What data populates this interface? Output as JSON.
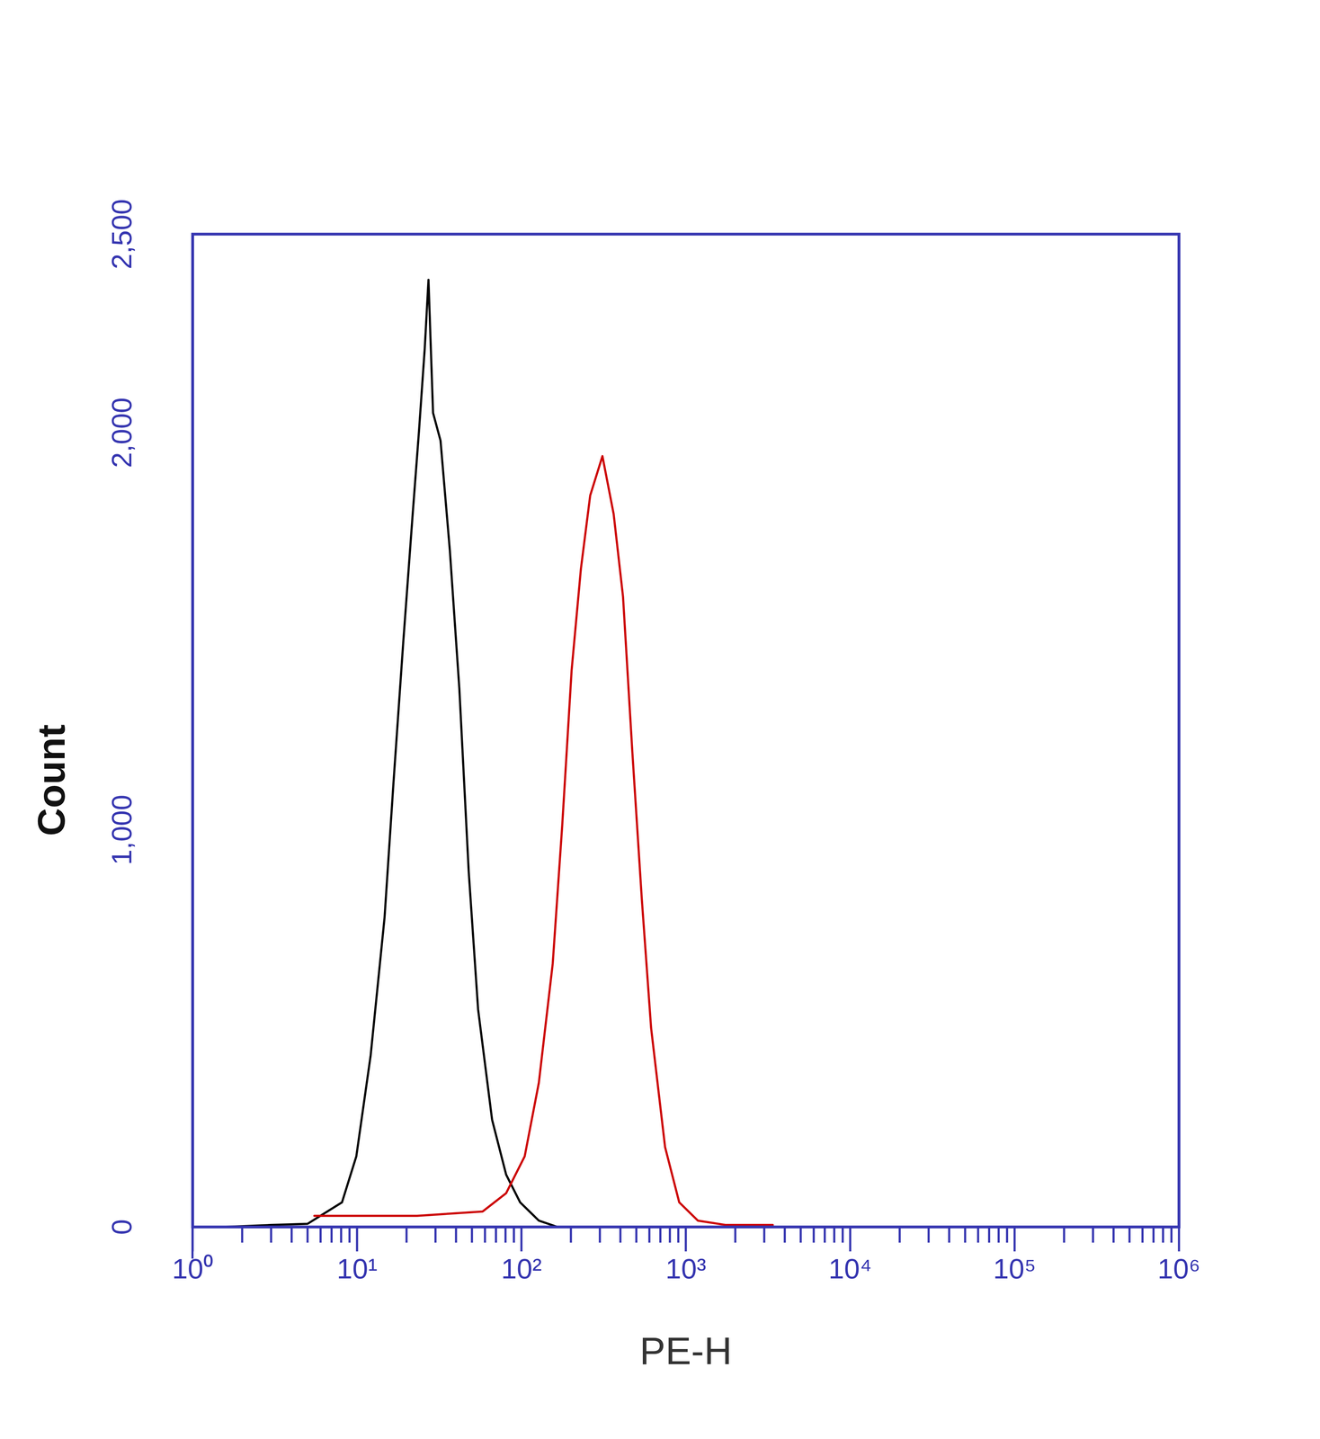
{
  "chart_data": {
    "type": "line",
    "x_label": "PE-H",
    "y_label": "Count",
    "log": "x",
    "xlim": [
      1,
      1000000
    ],
    "ylim": [
      0,
      2500
    ],
    "xticks": [
      {
        "value": 1,
        "label": "10⁰"
      },
      {
        "value": 10,
        "label": "10¹"
      },
      {
        "value": 100,
        "label": "10²"
      },
      {
        "value": 1000,
        "label": "10³"
      },
      {
        "value": 10000,
        "label": "10⁴"
      },
      {
        "value": 100000,
        "label": "10⁵"
      },
      {
        "value": 1000000,
        "label": "10⁶"
      }
    ],
    "yticks": [
      0,
      {
        "value": 1000,
        "label": "1,000"
      },
      {
        "value": 2000,
        "label": "2,000"
      },
      {
        "value": 2500,
        "label": "2,500"
      }
    ],
    "series": [
      {
        "color": "#000000",
        "x": [
          1.5,
          3,
          5,
          8.1,
          9.9,
          12.1,
          14.7,
          16.7,
          19.1,
          21.8,
          23.8,
          25.8,
          27.2,
          29.0,
          32.2,
          36.7,
          41.9,
          47.8,
          54.5,
          66.3,
          80.7,
          98.2,
          127.6,
          166
        ],
        "values": [
          0,
          5,
          8,
          62,
          178,
          432,
          779,
          1125,
          1472,
          1795,
          2003,
          2211,
          2385,
          2050,
          1980,
          1703,
          1356,
          894,
          548,
          270,
          132,
          62,
          16,
          0
        ]
      },
      {
        "color": "#cc0000",
        "x": [
          5.5,
          23.2,
          58.1,
          80.7,
          104.7,
          127.6,
          155,
          177,
          202,
          230,
          262,
          311,
          364,
          415,
          473,
          540,
          615,
          748,
          912,
          1184,
          1754,
          3379
        ],
        "values": [
          28,
          28,
          39,
          85,
          178,
          363,
          663,
          1010,
          1402,
          1657,
          1842,
          1941,
          1795,
          1587,
          1195,
          825,
          501,
          201,
          62,
          16,
          5,
          5
        ]
      }
    ]
  }
}
